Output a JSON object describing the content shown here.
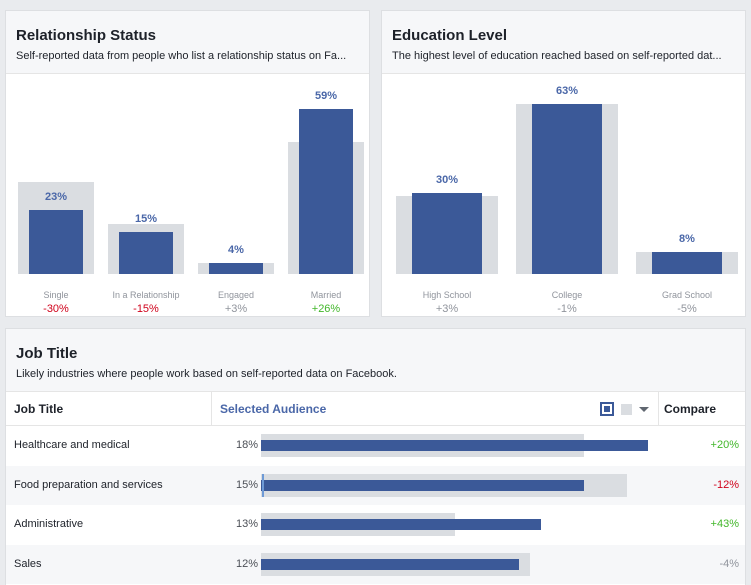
{
  "relationship": {
    "title": "Relationship Status",
    "subtitle": "Self-reported data from people who list a relationship status on Fa...",
    "groups": [
      {
        "label": "Single",
        "pct": "23%",
        "value": 23,
        "compare": 33,
        "diff": "-30%",
        "tone": "neg"
      },
      {
        "label": "In a Relationship",
        "pct": "15%",
        "value": 15,
        "compare": 18,
        "diff": "-15%",
        "tone": "neg"
      },
      {
        "label": "Engaged",
        "pct": "4%",
        "value": 4,
        "compare": 4,
        "diff": "+3%",
        "tone": "neu"
      },
      {
        "label": "Married",
        "pct": "59%",
        "value": 59,
        "compare": 47,
        "diff": "+26%",
        "tone": "pos"
      }
    ]
  },
  "education": {
    "title": "Education Level",
    "subtitle": "The highest level of education reached based on self-reported dat...",
    "groups": [
      {
        "label": "High School",
        "pct": "30%",
        "value": 30,
        "compare": 29,
        "diff": "+3%",
        "tone": "neu"
      },
      {
        "label": "College",
        "pct": "63%",
        "value": 63,
        "compare": 63,
        "diff": "-1%",
        "tone": "neu"
      },
      {
        "label": "Grad School",
        "pct": "8%",
        "value": 8,
        "compare": 8,
        "diff": "-5%",
        "tone": "neu"
      }
    ]
  },
  "job": {
    "title": "Job Title",
    "subtitle": "Likely industries where people work based on self-reported data on Facebook.",
    "col_job": "Job Title",
    "col_audience": "Selected Audience",
    "col_compare": "Compare",
    "rows": [
      {
        "name": "Healthcare and medical",
        "pct": "18%",
        "value": 18,
        "compare": 15,
        "diff": "+20%",
        "tone": "pos"
      },
      {
        "name": "Food preparation and services",
        "pct": "15%",
        "value": 15,
        "compare": 17,
        "diff": "-12%",
        "tone": "neg"
      },
      {
        "name": "Administrative",
        "pct": "13%",
        "value": 13,
        "compare": 9,
        "diff": "+43%",
        "tone": "pos"
      },
      {
        "name": "Sales",
        "pct": "12%",
        "value": 12,
        "compare": 12.5,
        "diff": "-4%",
        "tone": "neu"
      }
    ]
  },
  "colors": {
    "bar": "#3b5998",
    "compare_bar": "#dadde1",
    "positive": "#42b72a",
    "negative": "#d0021b"
  }
}
